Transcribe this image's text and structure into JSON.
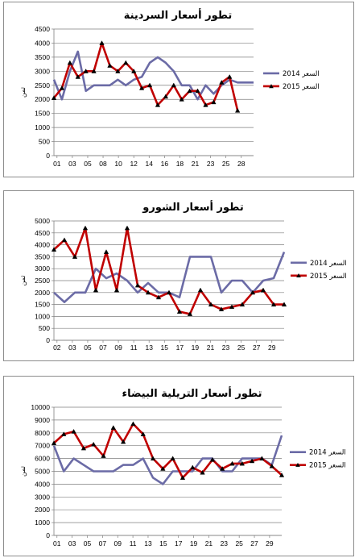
{
  "chart_data": [
    {
      "type": "line",
      "title": "تطور أسعار السردينة",
      "ylabel": "ثمن",
      "ylim": [
        0,
        4500
      ],
      "yticks": [
        0,
        500,
        1000,
        1500,
        2000,
        2500,
        3000,
        3500,
        4000,
        4500
      ],
      "x_tick_labels": [
        "01",
        "03",
        "05",
        "08",
        "10",
        "12",
        "14",
        "16",
        "18",
        "21",
        "23",
        "25",
        "28"
      ],
      "grid": true,
      "legend": "right",
      "series": [
        {
          "name": "2014 السعر",
          "color": "#6b6ba6",
          "marker": "none",
          "values": [
            2700,
            2000,
            3000,
            3700,
            2300,
            2500,
            2500,
            2500,
            2700,
            2500,
            2700,
            2800,
            3300,
            3500,
            3300,
            3000,
            2500,
            2500,
            2000,
            2500,
            2200,
            2500,
            2700,
            2600,
            2600,
            2600
          ]
        },
        {
          "name": "2015 السعر",
          "color": "#c00000",
          "marker": "triangle",
          "values": [
            2050,
            2400,
            3300,
            2800,
            3000,
            3000,
            4000,
            3200,
            3000,
            3300,
            3000,
            2400,
            2500,
            1800,
            2100,
            2500,
            2000,
            2300,
            2300,
            1800,
            1900,
            2600,
            2800,
            1600
          ]
        }
      ]
    },
    {
      "type": "line",
      "title": "تطور أسعار الشورو",
      "ylabel": "ثمن",
      "ylim": [
        0,
        5000
      ],
      "yticks": [
        0,
        500,
        1000,
        1500,
        2000,
        2500,
        3000,
        3500,
        4000,
        4500,
        5000
      ],
      "x_tick_labels": [
        "02",
        "03",
        "05",
        "07",
        "09",
        "11",
        "13",
        "15",
        "17",
        "19",
        "21",
        "23",
        "25",
        "27",
        "29"
      ],
      "grid": true,
      "legend": "right",
      "series": [
        {
          "name": "2014 السعر",
          "color": "#6b6ba6",
          "marker": "none",
          "values": [
            2000,
            1600,
            2000,
            2000,
            3000,
            2600,
            2800,
            2500,
            2000,
            2400,
            2000,
            2000,
            1800,
            3500,
            3500,
            3500,
            2000,
            2500,
            2500,
            2000,
            2500,
            2600,
            3700
          ]
        },
        {
          "name": "2015 السعر",
          "color": "#c00000",
          "marker": "triangle",
          "values": [
            3800,
            4200,
            3500,
            4700,
            2100,
            3700,
            2100,
            4700,
            2300,
            2000,
            1800,
            2000,
            1200,
            1100,
            2100,
            1500,
            1300,
            1400,
            1500,
            2000,
            2100,
            1500,
            1500
          ]
        }
      ]
    },
    {
      "type": "line",
      "title": "تطور أسعار التريلية البيضاء",
      "ylabel": "ثمن",
      "ylim": [
        0,
        10000
      ],
      "yticks": [
        0,
        1000,
        2000,
        3000,
        4000,
        5000,
        6000,
        7000,
        8000,
        9000,
        10000
      ],
      "x_tick_labels": [
        "01",
        "03",
        "05",
        "07",
        "09",
        "11",
        "13",
        "15",
        "17",
        "19",
        "21",
        "23",
        "25",
        "27",
        "29"
      ],
      "grid": true,
      "legend": "right",
      "series": [
        {
          "name": "2014 السعر",
          "color": "#6b6ba6",
          "marker": "none",
          "values": [
            7000,
            5000,
            6000,
            5500,
            5000,
            5000,
            5000,
            5500,
            5500,
            6000,
            4500,
            4000,
            5000,
            5000,
            5000,
            6000,
            6000,
            5000,
            5000,
            6000,
            6000,
            6000,
            5500,
            7800
          ]
        },
        {
          "name": "2015 السعر",
          "color": "#c00000",
          "marker": "triangle",
          "values": [
            7200,
            7900,
            8100,
            6800,
            7100,
            6200,
            8400,
            7300,
            8700,
            7900,
            6000,
            5200,
            6000,
            4500,
            5300,
            4900,
            5900,
            5200,
            5600,
            5600,
            5800,
            6000,
            5400,
            4700
          ]
        }
      ]
    }
  ]
}
